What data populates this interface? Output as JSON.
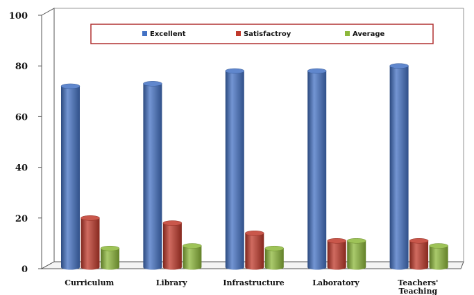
{
  "chart_data": {
    "type": "bar",
    "categories": [
      "Curriculum",
      "Library",
      "Infrastructure",
      "Laboratory",
      "Teachers' Teaching"
    ],
    "category_lines": [
      [
        "Curriculum"
      ],
      [
        "Library"
      ],
      [
        "Infrastructure"
      ],
      [
        "Laboratory"
      ],
      [
        "Teachers'",
        "Teaching"
      ]
    ],
    "series": [
      {
        "name": "Excellent",
        "color": "#4472C4",
        "values": [
          72,
          73,
          78,
          78,
          80
        ]
      },
      {
        "name": "Satisfactroy",
        "color": "#C0392B",
        "values": [
          20,
          18,
          14,
          11,
          11
        ]
      },
      {
        "name": "Average",
        "color": "#8DB83B",
        "values": [
          8,
          9,
          8,
          11,
          9
        ]
      }
    ],
    "yticks": [
      0,
      20,
      40,
      60,
      80,
      100
    ],
    "ylim": [
      0,
      100
    ],
    "legend": "top",
    "grid": false,
    "style": "3d-cylinder"
  }
}
